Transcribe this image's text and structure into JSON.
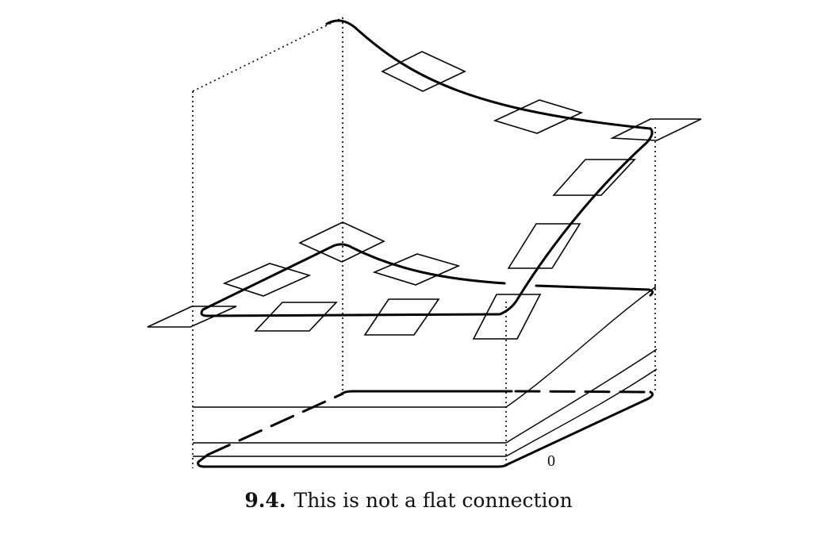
{
  "figure": {
    "origin_label": "0",
    "caption_number": "9.4.",
    "caption_text": "This is not a flat connection",
    "ink_color": "#000000"
  }
}
